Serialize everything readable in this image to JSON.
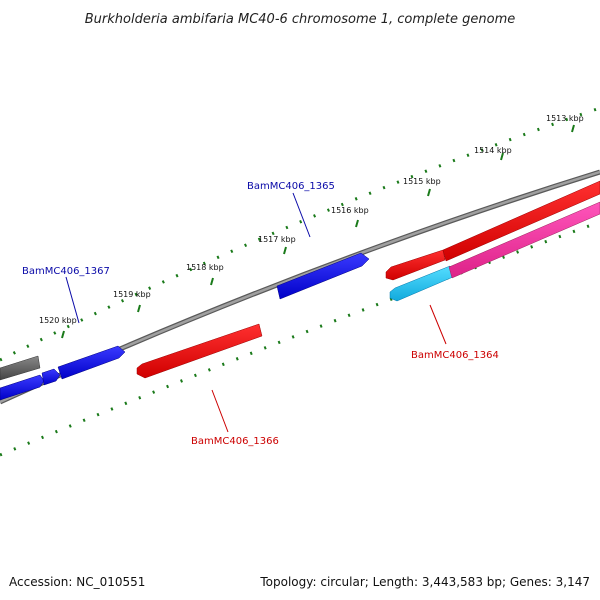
{
  "title": "Burkholderia ambifaria MC40-6 chromosome 1, complete genome",
  "footer": {
    "accession": "Accession: NC_010551",
    "summary": "Topology: circular; Length: 3,443,583 bp; Genes: 3,147"
  },
  "ticks": [
    {
      "label": "1513 kbp"
    },
    {
      "label": "1514 kbp"
    },
    {
      "label": "1515 kbp"
    },
    {
      "label": "1516 kbp"
    },
    {
      "label": "1517 kbp"
    },
    {
      "label": "1518 kbp"
    },
    {
      "label": "1519 kbp"
    },
    {
      "label": "1520 kbp"
    }
  ],
  "genes": [
    {
      "label": "BamMC406_1365",
      "color": "#0a0aa8"
    },
    {
      "label": "BamMC406_1367",
      "color": "#0a0aa8"
    },
    {
      "label": "BamMC406_1364",
      "color": "#cc0000"
    },
    {
      "label": "BamMC406_1366",
      "color": "#cc0000"
    }
  ],
  "colors": {
    "forward_gene": "#1010ee",
    "reverse_gene": "#ee1010",
    "rna_gene": "#33ccee",
    "other_gene": "#ee3399",
    "backbone": "#8c8c8c",
    "tick": "#1a7a1a"
  }
}
